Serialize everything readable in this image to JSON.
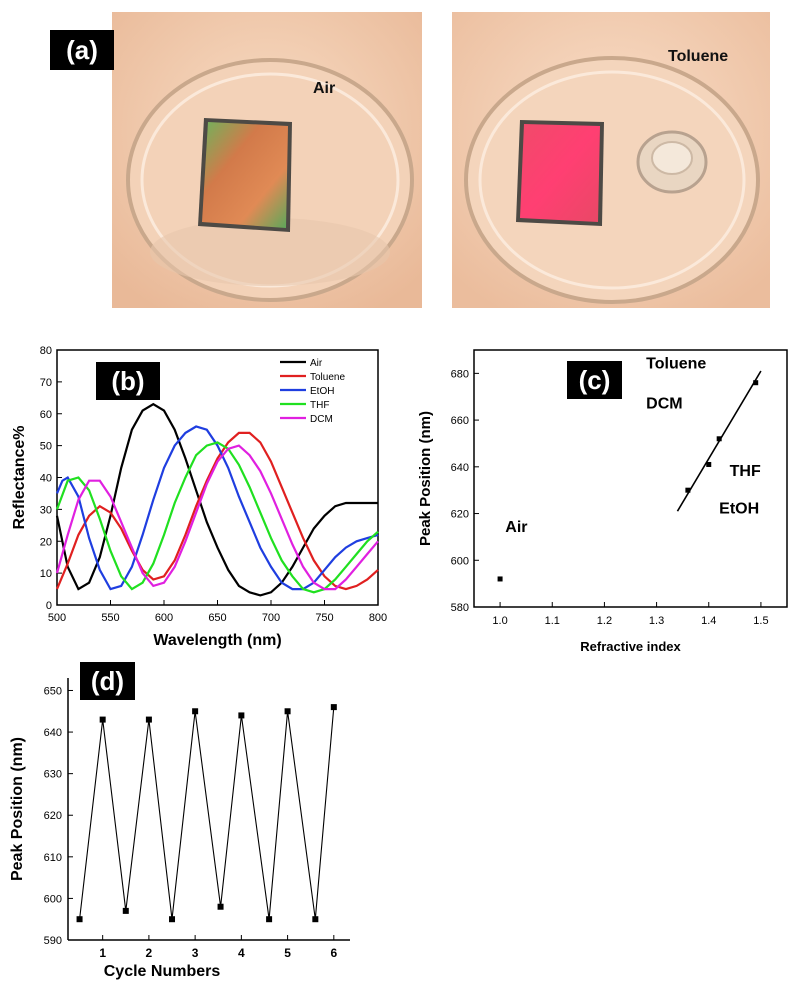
{
  "panel_labels": {
    "a": "(a)",
    "b": "(b)",
    "c": "(c)",
    "d": "(d)"
  },
  "photos": [
    {
      "caption": "Air"
    },
    {
      "caption": "Toluene"
    }
  ],
  "chart_data": [
    {
      "panel": "(b)",
      "type": "line",
      "xlabel": "Wavelength (nm)",
      "ylabel": "Reflectance%",
      "xlim": [
        500,
        800
      ],
      "ylim": [
        0,
        80
      ],
      "xticks": [
        500,
        550,
        600,
        650,
        700,
        750,
        800
      ],
      "yticks": [
        0,
        10,
        20,
        30,
        40,
        50,
        60,
        70,
        80
      ],
      "legend_position": "top-right",
      "series": [
        {
          "name": "Air",
          "color": "#000000",
          "x": [
            500,
            510,
            520,
            530,
            540,
            550,
            560,
            570,
            580,
            590,
            600,
            610,
            620,
            630,
            640,
            650,
            660,
            670,
            680,
            690,
            700,
            710,
            720,
            730,
            740,
            750,
            760,
            770,
            780,
            790,
            800
          ],
          "y": [
            28,
            12,
            5,
            7,
            15,
            28,
            43,
            55,
            61,
            63,
            61,
            55,
            46,
            36,
            26,
            18,
            11,
            6,
            4,
            3,
            4,
            7,
            12,
            18,
            24,
            28,
            31,
            32,
            32,
            32,
            32
          ]
        },
        {
          "name": "Toluene",
          "color": "#e02020",
          "x": [
            500,
            510,
            520,
            530,
            540,
            550,
            560,
            570,
            580,
            590,
            600,
            610,
            620,
            630,
            640,
            650,
            660,
            670,
            680,
            690,
            700,
            710,
            720,
            730,
            740,
            750,
            760,
            770,
            780,
            790,
            800
          ],
          "y": [
            5,
            13,
            22,
            28,
            31,
            29,
            24,
            17,
            11,
            8,
            9,
            14,
            22,
            31,
            39,
            46,
            51,
            54,
            54,
            51,
            45,
            37,
            29,
            21,
            14,
            9,
            6,
            5,
            6,
            8,
            11
          ]
        },
        {
          "name": "EtOH",
          "color": "#1f3ee0",
          "x": [
            500,
            505,
            510,
            520,
            530,
            540,
            550,
            560,
            570,
            580,
            590,
            600,
            610,
            620,
            630,
            640,
            650,
            660,
            670,
            680,
            690,
            700,
            710,
            720,
            730,
            740,
            750,
            760,
            770,
            780,
            790,
            800
          ],
          "y": [
            35,
            39,
            40,
            34,
            21,
            11,
            5,
            6,
            12,
            22,
            33,
            43,
            50,
            54,
            56,
            55,
            50,
            43,
            34,
            26,
            18,
            12,
            7,
            5,
            5,
            7,
            11,
            15,
            18,
            20,
            21,
            22
          ]
        },
        {
          "name": "THF",
          "color": "#20e020",
          "x": [
            500,
            510,
            520,
            530,
            540,
            550,
            560,
            570,
            580,
            590,
            600,
            610,
            620,
            630,
            640,
            650,
            660,
            670,
            680,
            690,
            700,
            710,
            720,
            730,
            740,
            750,
            760,
            770,
            780,
            790,
            800
          ],
          "y": [
            30,
            39,
            40,
            36,
            27,
            17,
            9,
            5,
            7,
            13,
            22,
            32,
            40,
            47,
            50,
            51,
            49,
            44,
            37,
            29,
            21,
            14,
            9,
            5,
            4,
            5,
            8,
            12,
            16,
            20,
            23
          ]
        },
        {
          "name": "DCM",
          "color": "#e020e0",
          "x": [
            500,
            510,
            520,
            530,
            540,
            550,
            560,
            570,
            580,
            590,
            600,
            610,
            620,
            630,
            640,
            650,
            660,
            670,
            680,
            690,
            700,
            710,
            720,
            730,
            740,
            750,
            760,
            770,
            780,
            790,
            800
          ],
          "y": [
            10,
            22,
            33,
            39,
            39,
            34,
            26,
            18,
            10,
            6,
            7,
            12,
            20,
            29,
            38,
            45,
            49,
            50,
            47,
            42,
            35,
            27,
            19,
            12,
            7,
            5,
            5,
            8,
            12,
            16,
            20
          ]
        }
      ]
    },
    {
      "panel": "(c)",
      "type": "scatter",
      "xlabel": "Refractive index",
      "ylabel": "Peak Position (nm)",
      "xlim": [
        0.95,
        1.55
      ],
      "ylim": [
        580,
        690
      ],
      "xticks": [
        1.0,
        1.1,
        1.2,
        1.3,
        1.4,
        1.5
      ],
      "yticks": [
        580,
        600,
        620,
        640,
        660,
        680
      ],
      "points": [
        {
          "x": 1.0,
          "y": 592
        },
        {
          "x": 1.36,
          "y": 630
        },
        {
          "x": 1.4,
          "y": 641
        },
        {
          "x": 1.42,
          "y": 652
        },
        {
          "x": 1.49,
          "y": 676
        }
      ],
      "fit_line": {
        "x": [
          1.34,
          1.5
        ],
        "y": [
          621,
          681
        ]
      },
      "annotations": [
        "Air",
        "Toluene",
        "DCM",
        "THF",
        "EtOH"
      ]
    },
    {
      "panel": "(d)",
      "type": "line",
      "xlabel": "Cycle Numbers",
      "ylabel": "Peak Position (nm)",
      "xlim": [
        0.25,
        6.35
      ],
      "ylim": [
        590,
        653
      ],
      "xticks": [
        1,
        2,
        3,
        4,
        5,
        6
      ],
      "yticks": [
        590,
        600,
        610,
        620,
        630,
        640,
        650
      ],
      "x": [
        0.5,
        1,
        1.5,
        2,
        2.5,
        3,
        3.55,
        4,
        4.6,
        5,
        5.6,
        6
      ],
      "y": [
        595,
        643,
        597,
        643,
        595,
        645,
        598,
        644,
        595,
        645,
        595,
        646
      ]
    }
  ]
}
